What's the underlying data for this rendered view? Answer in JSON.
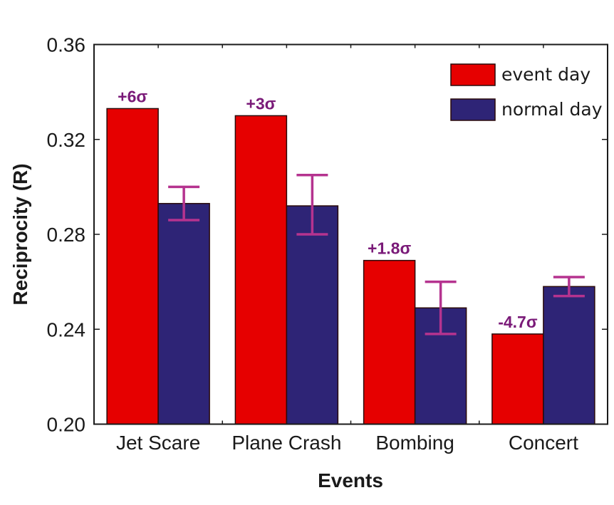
{
  "chart_data": {
    "type": "bar",
    "title": "",
    "xlabel": "Events",
    "ylabel": "Reciprocity (R)",
    "ylim": [
      0.2,
      0.36
    ],
    "yticks": [
      0.2,
      0.24,
      0.28,
      0.32,
      0.36
    ],
    "ytick_labels": [
      "0.20",
      "0.24",
      "0.28",
      "0.32",
      "0.36"
    ],
    "categories": [
      "Jet Scare",
      "Plane Crash",
      "Bombing",
      "Concert"
    ],
    "series": [
      {
        "name": "event day",
        "color": "#e60000",
        "values": [
          0.333,
          0.33,
          0.269,
          0.238
        ],
        "annotations": [
          "+6σ",
          "+3σ",
          "+1.8σ",
          "-4.7σ"
        ]
      },
      {
        "name": "normal day",
        "color": "#2e2476",
        "values": [
          0.293,
          0.292,
          0.249,
          0.258
        ],
        "error_low": [
          0.286,
          0.28,
          0.238,
          0.254
        ],
        "error_high": [
          0.3,
          0.305,
          0.26,
          0.262
        ]
      }
    ],
    "legend": {
      "position": "top-right",
      "entries": [
        "event day",
        "normal day"
      ]
    },
    "annotation_color": "#7a1a78",
    "error_bar_color": "#b5338f",
    "grid": false
  }
}
